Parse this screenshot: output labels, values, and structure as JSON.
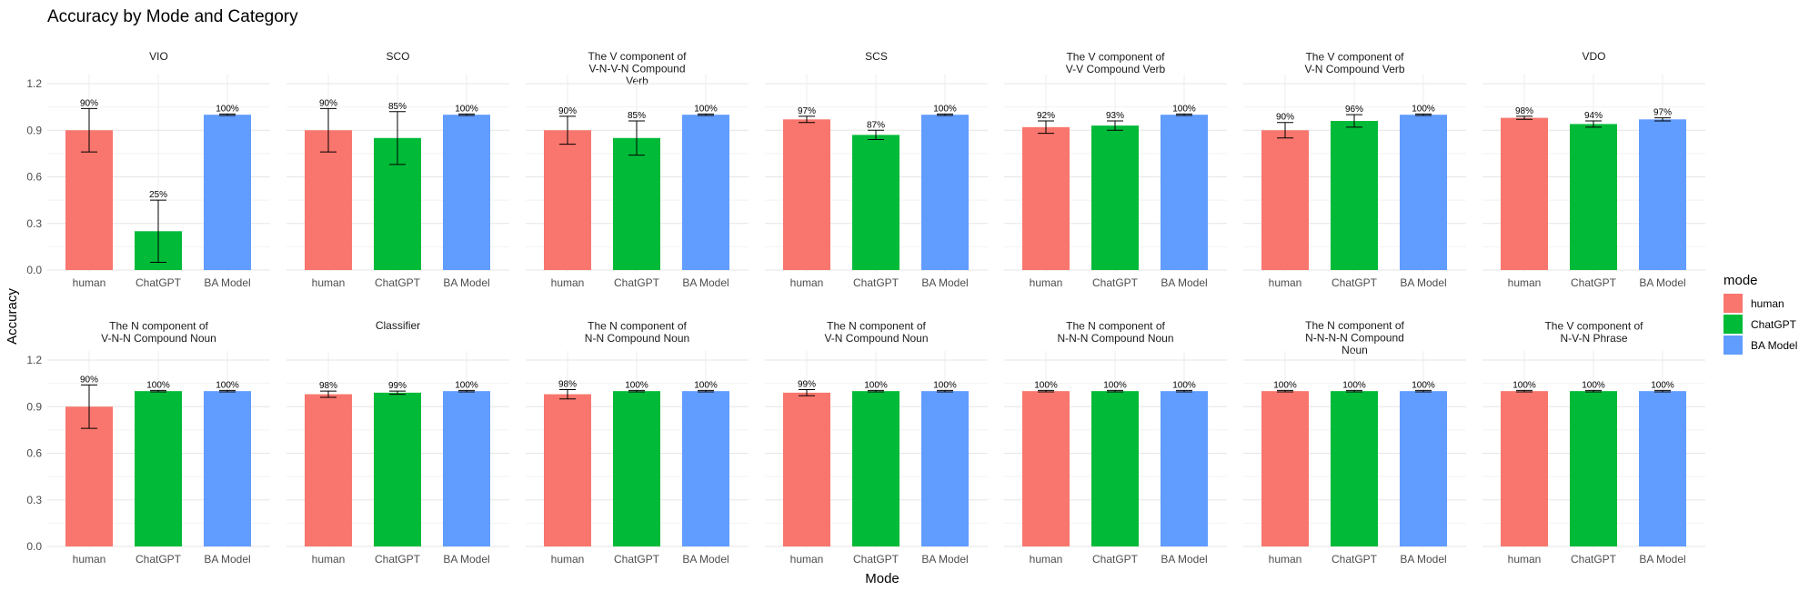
{
  "chart_data": {
    "type": "bar",
    "title": "Accuracy by Mode and Category",
    "xlabel": "Mode",
    "ylabel": "Accuracy",
    "categories": [
      "human",
      "ChatGPT",
      "BA Model"
    ],
    "ylim": [
      0,
      1.2
    ],
    "yticks": [
      "0.0",
      "0.3",
      "0.6",
      "0.9",
      "1.2"
    ],
    "grid": true,
    "legend": {
      "title": "mode",
      "position": "right",
      "entries": [
        "human",
        "ChatGPT",
        "BA Model"
      ]
    },
    "colors": {
      "human": "#F8766D",
      "ChatGPT": "#00BA38",
      "BA Model": "#619CFF"
    },
    "panels": [
      {
        "title": [
          "VIO"
        ],
        "values": [
          0.9,
          0.25,
          1.0
        ],
        "labels": [
          "90%",
          "25%",
          "100%"
        ],
        "errors": [
          [
            0.76,
            1.04
          ],
          [
            0.05,
            0.45
          ],
          [
            0.995,
            1.005
          ]
        ]
      },
      {
        "title": [
          "SCO"
        ],
        "values": [
          0.9,
          0.85,
          1.0
        ],
        "labels": [
          "90%",
          "85%",
          "100%"
        ],
        "errors": [
          [
            0.76,
            1.04
          ],
          [
            0.68,
            1.02
          ],
          [
            0.995,
            1.005
          ]
        ]
      },
      {
        "title": [
          "The V component of",
          "V-N-V-N Compound",
          "Verb"
        ],
        "values": [
          0.9,
          0.85,
          1.0
        ],
        "labels": [
          "90%",
          "85%",
          "100%"
        ],
        "errors": [
          [
            0.81,
            0.99
          ],
          [
            0.74,
            0.96
          ],
          [
            0.995,
            1.005
          ]
        ]
      },
      {
        "title": [
          "SCS"
        ],
        "values": [
          0.97,
          0.87,
          1.0
        ],
        "labels": [
          "97%",
          "87%",
          "100%"
        ],
        "errors": [
          [
            0.95,
            0.99
          ],
          [
            0.84,
            0.9
          ],
          [
            0.995,
            1.005
          ]
        ]
      },
      {
        "title": [
          "The V component of",
          "V-V Compound Verb"
        ],
        "values": [
          0.92,
          0.93,
          1.0
        ],
        "labels": [
          "92%",
          "93%",
          "100%"
        ],
        "errors": [
          [
            0.88,
            0.96
          ],
          [
            0.9,
            0.96
          ],
          [
            0.995,
            1.005
          ]
        ]
      },
      {
        "title": [
          "The V component of",
          "V-N Compound Verb"
        ],
        "values": [
          0.9,
          0.96,
          1.0
        ],
        "labels": [
          "90%",
          "96%",
          "100%"
        ],
        "errors": [
          [
            0.85,
            0.95
          ],
          [
            0.92,
            1.0
          ],
          [
            0.995,
            1.005
          ]
        ]
      },
      {
        "title": [
          "VDO"
        ],
        "values": [
          0.98,
          0.94,
          0.97
        ],
        "labels": [
          "98%",
          "94%",
          "97%"
        ],
        "errors": [
          [
            0.97,
            0.99
          ],
          [
            0.92,
            0.96
          ],
          [
            0.96,
            0.98
          ]
        ]
      },
      {
        "title": [
          "The N component of",
          "V-N-N Compound Noun"
        ],
        "values": [
          0.9,
          1.0,
          1.0
        ],
        "labels": [
          "90%",
          "100%",
          "100%"
        ],
        "errors": [
          [
            0.76,
            1.04
          ],
          [
            0.995,
            1.005
          ],
          [
            0.995,
            1.005
          ]
        ]
      },
      {
        "title": [
          "Classifier"
        ],
        "values": [
          0.98,
          0.99,
          1.0
        ],
        "labels": [
          "98%",
          "99%",
          "100%"
        ],
        "errors": [
          [
            0.96,
            1.0
          ],
          [
            0.98,
            1.0
          ],
          [
            0.995,
            1.005
          ]
        ]
      },
      {
        "title": [
          "The N component of",
          "N-N Compound Noun"
        ],
        "values": [
          0.98,
          1.0,
          1.0
        ],
        "labels": [
          "98%",
          "100%",
          "100%"
        ],
        "errors": [
          [
            0.95,
            1.01
          ],
          [
            0.995,
            1.005
          ],
          [
            0.995,
            1.005
          ]
        ]
      },
      {
        "title": [
          "The N component of",
          "V-N Compound Noun"
        ],
        "values": [
          0.99,
          1.0,
          1.0
        ],
        "labels": [
          "99%",
          "100%",
          "100%"
        ],
        "errors": [
          [
            0.97,
            1.01
          ],
          [
            0.995,
            1.005
          ],
          [
            0.995,
            1.005
          ]
        ]
      },
      {
        "title": [
          "The N component of",
          "N-N-N Compound Noun"
        ],
        "values": [
          1.0,
          1.0,
          1.0
        ],
        "labels": [
          "100%",
          "100%",
          "100%"
        ],
        "errors": [
          [
            0.995,
            1.005
          ],
          [
            0.995,
            1.005
          ],
          [
            0.995,
            1.005
          ]
        ]
      },
      {
        "title": [
          "The N component of",
          "N-N-N-N Compound",
          "Noun"
        ],
        "values": [
          1.0,
          1.0,
          1.0
        ],
        "labels": [
          "100%",
          "100%",
          "100%"
        ],
        "errors": [
          [
            0.995,
            1.005
          ],
          [
            0.995,
            1.005
          ],
          [
            0.995,
            1.005
          ]
        ]
      },
      {
        "title": [
          "The V component of",
          "N-V-N Phrase"
        ],
        "values": [
          1.0,
          1.0,
          1.0
        ],
        "labels": [
          "100%",
          "100%",
          "100%"
        ],
        "errors": [
          [
            0.995,
            1.005
          ],
          [
            0.995,
            1.005
          ],
          [
            0.995,
            1.005
          ]
        ]
      }
    ]
  }
}
